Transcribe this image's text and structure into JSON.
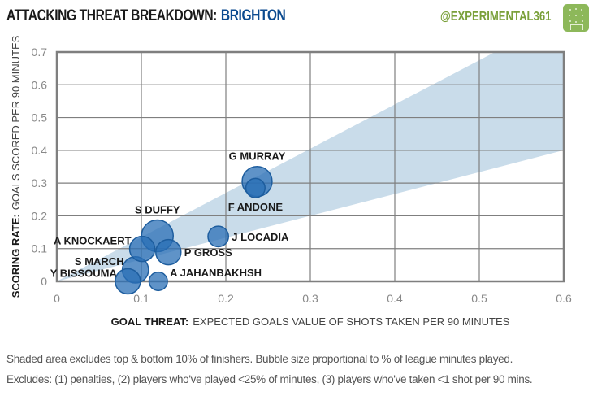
{
  "header": {
    "title": "ATTACKING THREAT BREAKDOWN:",
    "team": "BRIGHTON",
    "handle": "@EXPERIMENTAL361",
    "logo_icon": "football-pitch-icon"
  },
  "colors": {
    "team": "#0b4a8f",
    "brand": "#7aa03a",
    "band": "#c9dcea",
    "bubble_fill": "#2a6fb5",
    "bubble_stroke": "#1d5d9e",
    "grid": "#7f7f7f"
  },
  "chart_data": {
    "type": "scatter",
    "title": "ATTACKING THREAT BREAKDOWN: BRIGHTON",
    "xlabel_bold": "GOAL THREAT:",
    "xlabel": "EXPECTED GOALS VALUE OF SHOTS TAKEN PER 90 MINUTES",
    "ylabel_bold": "SCORING RATE:",
    "ylabel": "GOALS SCORED PER 90 MINUTES",
    "xlim": [
      0,
      0.6
    ],
    "ylim": [
      0,
      0.7
    ],
    "xticks": [
      "0",
      "0.1",
      "0.2",
      "0.3",
      "0.4",
      "0.5",
      "0.6"
    ],
    "yticks": [
      "0",
      "0.1",
      "0.2",
      "0.3",
      "0.4",
      "0.5",
      "0.6",
      "0.7"
    ],
    "grid": true,
    "band": {
      "description": "Shaded area excludes top & bottom 10% of finishers",
      "upper_slope": 1.35,
      "lower_slope": 0.667
    },
    "points": [
      {
        "name": "G MURRAY",
        "x": 0.237,
        "y": 0.305,
        "size": 0.85,
        "label_pos": "above"
      },
      {
        "name": "F ANDONE",
        "x": 0.235,
        "y": 0.285,
        "size": 0.35,
        "label_pos": "below"
      },
      {
        "name": "J LOCADIA",
        "x": 0.191,
        "y": 0.137,
        "size": 0.4,
        "label_pos": "right"
      },
      {
        "name": "S DUFFY",
        "x": 0.119,
        "y": 0.139,
        "size": 0.95,
        "label_pos": "above"
      },
      {
        "name": "P GROSS",
        "x": 0.132,
        "y": 0.089,
        "size": 0.6,
        "label_pos": "right"
      },
      {
        "name": "A KNOCKAERT",
        "x": 0.101,
        "y": 0.099,
        "size": 0.6,
        "label_pos": "left-up"
      },
      {
        "name": "S MARCH",
        "x": 0.093,
        "y": 0.035,
        "size": 0.65,
        "label_pos": "left-up"
      },
      {
        "name": "Y BISSOUMA",
        "x": 0.084,
        "y": 0.0,
        "size": 0.6,
        "label_pos": "left-up"
      },
      {
        "name": "A JAHANBAKHSH",
        "x": 0.12,
        "y": 0.0,
        "size": 0.32,
        "label_pos": "right-up"
      }
    ]
  },
  "footer": {
    "line1": "Shaded area excludes top & bottom 10% of finishers. Bubble size proportional to % of league minutes played.",
    "line2": "Excludes: (1) penalties, (2) players who've played <25% of minutes, (3) players who've taken <1 shot per 90 mins."
  }
}
